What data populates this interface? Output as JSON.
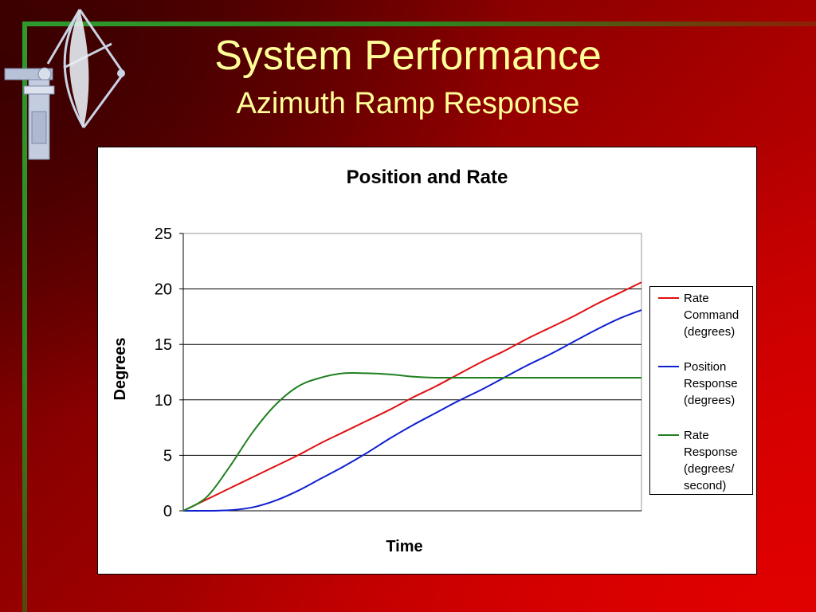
{
  "slide": {
    "title": "System Performance",
    "subtitle": "Azimuth Ramp Response"
  },
  "chart_data": {
    "type": "line",
    "title": "Position and Rate",
    "xlabel": "Time",
    "ylabel": "Degrees",
    "ylim": [
      0,
      25
    ],
    "yticks": [
      0,
      5,
      10,
      15,
      20,
      25
    ],
    "xlim": [
      0,
      100
    ],
    "grid": "horizontal",
    "legend_position": "right",
    "x": [
      0,
      5,
      10,
      15,
      20,
      25,
      30,
      35,
      40,
      45,
      50,
      55,
      60,
      65,
      70,
      75,
      80,
      85,
      90,
      95,
      100
    ],
    "series": [
      {
        "name": "Rate\nCommand\n(degrees)",
        "color": "#e01010",
        "values": [
          0,
          1.0,
          2.0,
          3.0,
          4.0,
          5.0,
          6.1,
          7.1,
          8.1,
          9.1,
          10.2,
          11.2,
          12.3,
          13.4,
          14.4,
          15.5,
          16.5,
          17.5,
          18.6,
          19.6,
          20.6
        ]
      },
      {
        "name": "Position\nResponse\n(degrees)",
        "color": "#1020d0",
        "values": [
          0,
          0,
          0.05,
          0.3,
          0.9,
          1.8,
          2.9,
          4.0,
          5.2,
          6.5,
          7.7,
          8.8,
          9.9,
          10.9,
          12.0,
          13.1,
          14.1,
          15.2,
          16.3,
          17.3,
          18.1
        ]
      },
      {
        "name": "Rate\nResponse\n(degrees/\nsecond)",
        "color": "#208020",
        "values": [
          0,
          1.2,
          3.9,
          7.0,
          9.5,
          11.2,
          12.0,
          12.4,
          12.4,
          12.3,
          12.1,
          12.0,
          12.0,
          12.0,
          12.0,
          12.0,
          12.0,
          12.0,
          12.0,
          12.0,
          12.0
        ]
      }
    ]
  },
  "colors": {
    "title_text": "#ffff99",
    "frame_green": "#2e9a2e",
    "background_red": "#b80000"
  },
  "icons": {
    "logo": "satellite-dish-icon"
  }
}
